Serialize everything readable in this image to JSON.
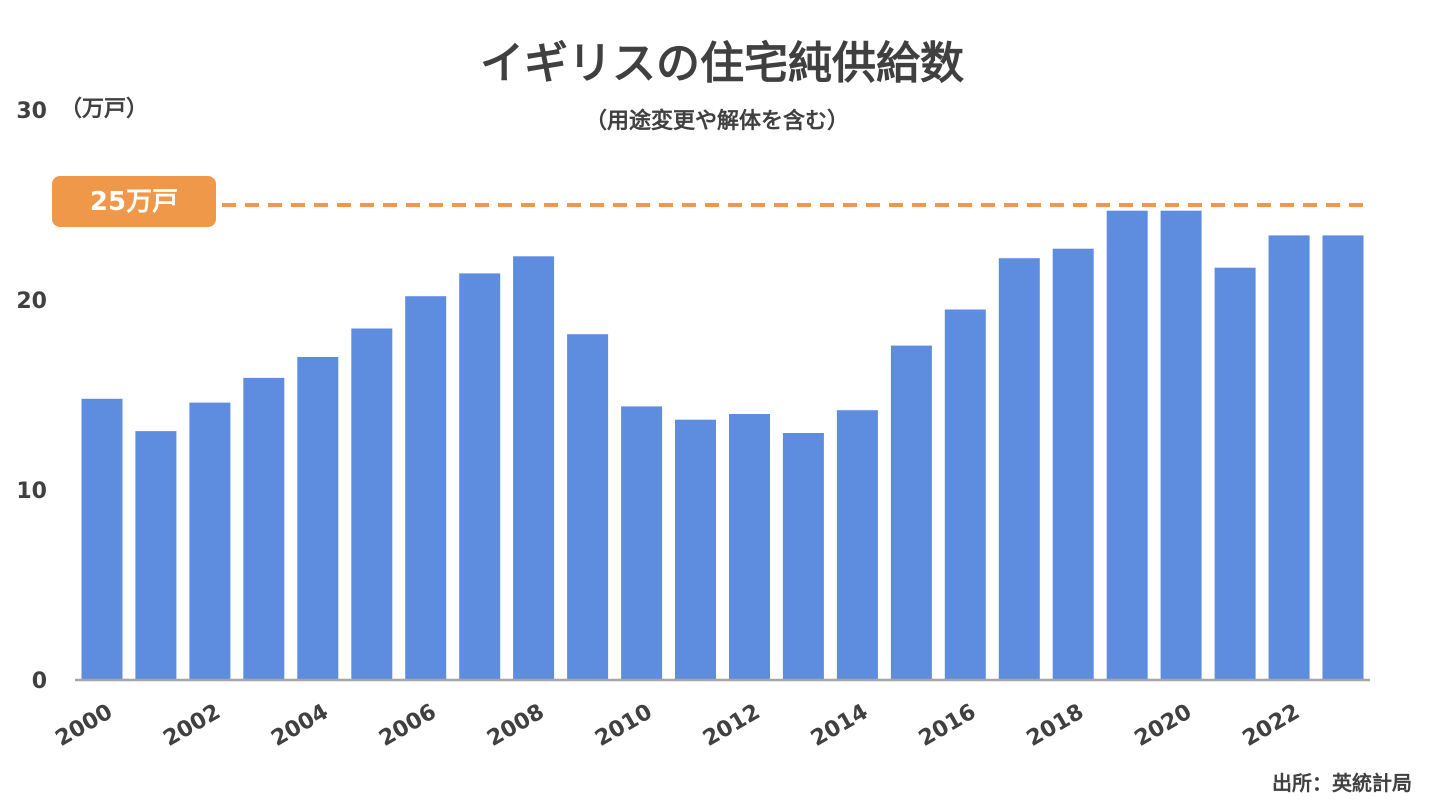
{
  "chart_data": {
    "type": "bar",
    "title": "イギリスの住宅純供給数",
    "subtitle": "（用途変更や解体を含む）",
    "ylabel": "（万戸）",
    "xlabel": "",
    "categories": [
      "2000",
      "2001",
      "2002",
      "2003",
      "2004",
      "2005",
      "2006",
      "2007",
      "2008",
      "2009",
      "2010",
      "2011",
      "2012",
      "2013",
      "2014",
      "2015",
      "2016",
      "2017",
      "2018",
      "2019",
      "2020",
      "2021",
      "2022",
      "2023"
    ],
    "x_tick_labels": [
      "2000",
      "2002",
      "2004",
      "2006",
      "2008",
      "2010",
      "2012",
      "2014",
      "2016",
      "2018",
      "2020",
      "2022"
    ],
    "values": [
      14.8,
      13.1,
      14.6,
      15.9,
      17.0,
      18.5,
      20.2,
      21.4,
      22.3,
      18.2,
      14.4,
      13.7,
      14.0,
      13.0,
      14.2,
      17.6,
      19.5,
      22.2,
      22.7,
      24.7,
      24.7,
      21.7,
      23.4,
      23.4
    ],
    "ylim": [
      0,
      30
    ],
    "y_ticks": [
      0,
      10,
      20,
      30
    ],
    "reference_line": {
      "value": 25,
      "label": "25万戸",
      "style": "dashed"
    },
    "colors": {
      "bar": "#5e8ddf",
      "reference": "#f0984a",
      "axis": "#a6a6a6"
    },
    "grid": false,
    "legend": "none"
  },
  "source": "出所：英統計局"
}
